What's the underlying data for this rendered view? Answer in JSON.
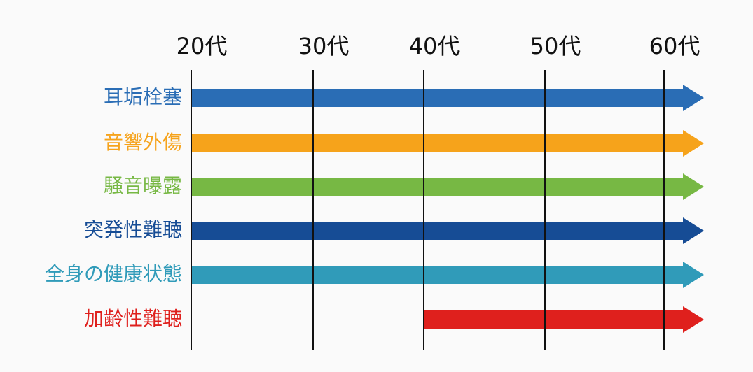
{
  "columns": [
    "20代",
    "30代",
    "40代",
    "50代",
    "60代"
  ],
  "rows": [
    {
      "label": "耳垢栓塞",
      "color": "#2a6db5",
      "start_column": 0
    },
    {
      "label": "音響外傷",
      "color": "#f6a31b",
      "start_column": 0
    },
    {
      "label": "騒音曝露",
      "color": "#77b844",
      "start_column": 0
    },
    {
      "label": "突発性難聴",
      "color": "#164c95",
      "start_column": 0
    },
    {
      "label": "全身の健康状態",
      "color": "#309bb9",
      "start_column": 0
    },
    {
      "label": "加齢性難聴",
      "color": "#df201d",
      "start_column": 2
    }
  ]
}
